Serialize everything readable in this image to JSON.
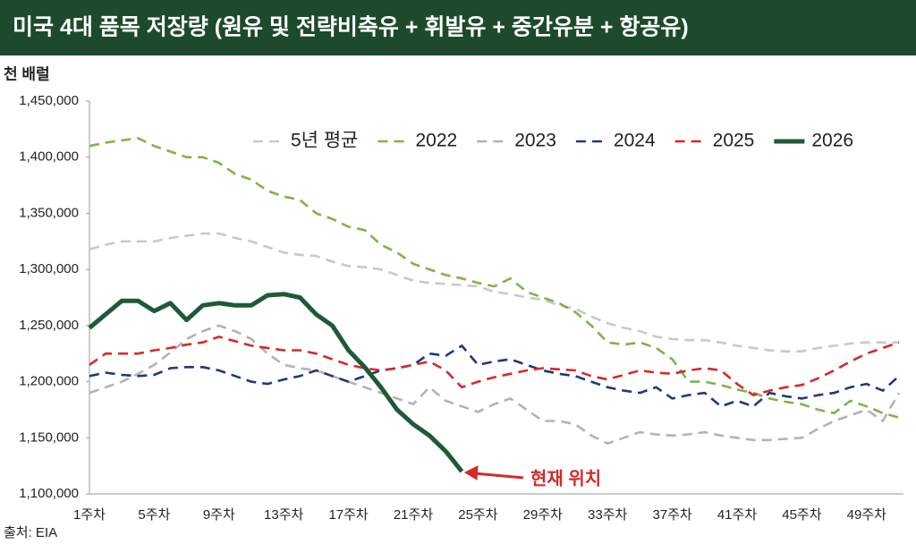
{
  "chart_data": {
    "type": "line",
    "title": "미국 4대 품목 저장량 (원유 및 전략비축유 + 휘발유 + 중간유분 + 항공유)",
    "y_label": "천 배럴",
    "source": "출처: EIA",
    "annotation": "현재 위치",
    "annotation_color": "#d42a2a",
    "title_bar_color": "#1d4a2c",
    "categories": [
      "1주차",
      null,
      null,
      null,
      "5주차",
      null,
      null,
      null,
      "9주차",
      null,
      null,
      null,
      "13주차",
      null,
      null,
      null,
      "17주차",
      null,
      null,
      null,
      "21주차",
      null,
      null,
      null,
      "25주차",
      null,
      null,
      null,
      "29주차",
      null,
      null,
      null,
      "33주차",
      null,
      null,
      null,
      "37주차",
      null,
      null,
      null,
      "41주차",
      null,
      null,
      null,
      "45주차",
      null,
      null,
      null,
      "49주차",
      null,
      null
    ],
    "ylim": [
      1100000,
      1450000
    ],
    "yticks": [
      {
        "value": 1100000,
        "label": "1,100,000"
      },
      {
        "value": 1150000,
        "label": "1,150,000"
      },
      {
        "value": 1200000,
        "label": "1,200,000"
      },
      {
        "value": 1250000,
        "label": "1,250,000"
      },
      {
        "value": 1300000,
        "label": "1,300,000"
      },
      {
        "value": 1350000,
        "label": "1,350,000"
      },
      {
        "value": 1400000,
        "label": "1,400,000"
      },
      {
        "value": 1450000,
        "label": "1,450,000"
      }
    ],
    "grid": false,
    "legend": "top-right",
    "series": [
      {
        "name": "5년 평균",
        "color": "#c9c9c9",
        "dashed": true,
        "values": [
          1318000,
          1322000,
          1325000,
          1325000,
          1325000,
          1328000,
          1330000,
          1332000,
          1332000,
          1328000,
          1325000,
          1320000,
          1315000,
          1313000,
          1312000,
          1307000,
          1303000,
          1302000,
          1300000,
          1295000,
          1290000,
          1288000,
          1287000,
          1286000,
          1285000,
          1280000,
          1278000,
          1275000,
          1273000,
          1268000,
          1265000,
          1258000,
          1252000,
          1248000,
          1245000,
          1240000,
          1238000,
          1237000,
          1237000,
          1235000,
          1232000,
          1230000,
          1228000,
          1227000,
          1227000,
          1230000,
          1232000,
          1234000,
          1235000,
          1235000,
          1235000
        ]
      },
      {
        "name": "2022",
        "color": "#7ab648",
        "dashed": true,
        "values": [
          1410000,
          1413000,
          1415000,
          1417000,
          1410000,
          1405000,
          1400000,
          1400000,
          1395000,
          1385000,
          1380000,
          1370000,
          1365000,
          1362000,
          1350000,
          1345000,
          1338000,
          1335000,
          1322000,
          1315000,
          1305000,
          1300000,
          1295000,
          1292000,
          1288000,
          1285000,
          1292000,
          1280000,
          1275000,
          1270000,
          1262000,
          1250000,
          1235000,
          1233000,
          1235000,
          1230000,
          1220000,
          1200000,
          1200000,
          1197000,
          1193000,
          1190000,
          1185000,
          1182000,
          1180000,
          1175000,
          1172000,
          1183000,
          1178000,
          1172000,
          1168000
        ]
      },
      {
        "name": "2023",
        "color": "#b3b3b3",
        "dashed": true,
        "values": [
          1190000,
          1195000,
          1200000,
          1207000,
          1215000,
          1226000,
          1238000,
          1245000,
          1250000,
          1245000,
          1238000,
          1225000,
          1215000,
          1212000,
          1210000,
          1205000,
          1200000,
          1195000,
          1190000,
          1185000,
          1180000,
          1195000,
          1183000,
          1178000,
          1173000,
          1180000,
          1185000,
          1175000,
          1165000,
          1165000,
          1162000,
          1152000,
          1145000,
          1150000,
          1155000,
          1153000,
          1152000,
          1153000,
          1155000,
          1152000,
          1150000,
          1148000,
          1148000,
          1149000,
          1150000,
          1158000,
          1165000,
          1170000,
          1175000,
          1165000,
          1190000
        ]
      },
      {
        "name": "2024",
        "color": "#1f3a7a",
        "dashed": true,
        "values": [
          1205000,
          1208000,
          1206000,
          1205000,
          1206000,
          1212000,
          1213000,
          1213000,
          1210000,
          1205000,
          1200000,
          1198000,
          1202000,
          1205000,
          1210000,
          1205000,
          1200000,
          1205000,
          1210000,
          1212000,
          1215000,
          1225000,
          1223000,
          1232000,
          1215000,
          1218000,
          1220000,
          1215000,
          1210000,
          1207000,
          1205000,
          1200000,
          1195000,
          1192000,
          1190000,
          1195000,
          1185000,
          1188000,
          1190000,
          1178000,
          1183000,
          1178000,
          1190000,
          1187000,
          1185000,
          1188000,
          1190000,
          1195000,
          1198000,
          1192000,
          1205000
        ]
      },
      {
        "name": "2025",
        "color": "#d42a2a",
        "dashed": true,
        "values": [
          1215000,
          1225000,
          1225000,
          1225000,
          1228000,
          1230000,
          1233000,
          1235000,
          1240000,
          1236000,
          1232000,
          1230000,
          1228000,
          1228000,
          1225000,
          1220000,
          1215000,
          1212000,
          1210000,
          1212000,
          1215000,
          1218000,
          1210000,
          1195000,
          1200000,
          1204000,
          1207000,
          1210000,
          1212000,
          1211000,
          1210000,
          1205000,
          1202000,
          1206000,
          1210000,
          1208000,
          1207000,
          1210000,
          1212000,
          1210000,
          1198000,
          1188000,
          1192000,
          1195000,
          1197000,
          1203000,
          1210000,
          1218000,
          1225000,
          1230000,
          1235000
        ]
      },
      {
        "name": "2026",
        "color": "#1e5a38",
        "dashed": false,
        "values": [
          1248000,
          1260000,
          1272000,
          1272000,
          1263000,
          1270000,
          1255000,
          1268000,
          1270000,
          1268000,
          1268000,
          1277000,
          1278000,
          1275000,
          1260000,
          1250000,
          1228000,
          1213000,
          1195000,
          1175000,
          1162000,
          1152000,
          1138000,
          1120000,
          null,
          null,
          null,
          null,
          null,
          null,
          null,
          null,
          null,
          null,
          null,
          null,
          null,
          null,
          null,
          null,
          null,
          null,
          null,
          null,
          null,
          null,
          null,
          null,
          null,
          null,
          null
        ]
      }
    ]
  }
}
